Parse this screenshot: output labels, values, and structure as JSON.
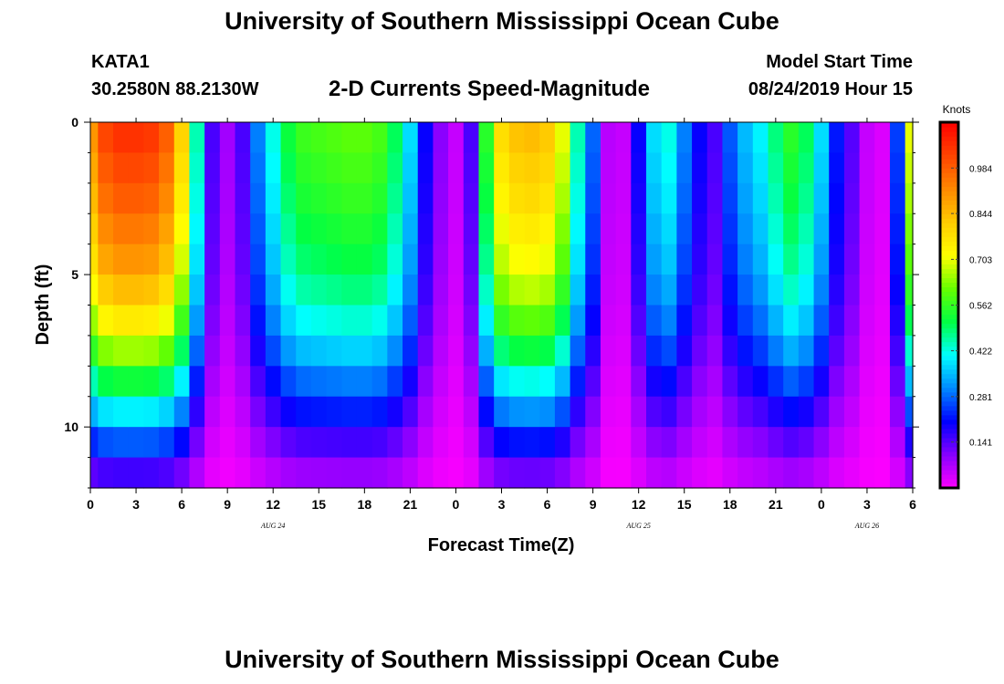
{
  "header": {
    "title": "University of Southern Mississippi Ocean Cube",
    "station": "KATA1",
    "coords": "30.2580N 88.2130W",
    "subtitle": "2-D Currents Speed-Magnitude",
    "model_start_label": "Model Start Time",
    "model_start_value": "08/24/2019 Hour 15"
  },
  "footer": {
    "title": "University of Southern Mississippi Ocean Cube"
  },
  "chart_data": {
    "type": "heatmap",
    "title": "2-D Currents Speed-Magnitude",
    "xlabel": "Forecast Time(Z)",
    "ylabel": "Depth (ft)",
    "colorbar_label": "Knots",
    "x_hours_from_start": {
      "start_label": "08/24/2019 00Z",
      "range": [
        0,
        54
      ],
      "step_hours": 1
    },
    "x_tick_hours": [
      0,
      3,
      6,
      9,
      12,
      15,
      18,
      21,
      24,
      27,
      30,
      33,
      36,
      39,
      42,
      45,
      48,
      51,
      54
    ],
    "x_tick_labels": [
      "0",
      "3",
      "6",
      "9",
      "12",
      "15",
      "18",
      "21",
      "0",
      "3",
      "6",
      "9",
      "12",
      "15",
      "18",
      "21",
      "0",
      "3",
      "6"
    ],
    "date_labels": [
      {
        "hour": 12,
        "text": "AUG 24"
      },
      {
        "hour": 36,
        "text": "AUG 25"
      },
      {
        "hour": 51,
        "text": "AUG 26"
      }
    ],
    "y_range_ft": [
      0,
      12
    ],
    "y_ticks": [
      0,
      5,
      10
    ],
    "depth_levels_ft": [
      0.5,
      1.5,
      2.5,
      3.5,
      4.5,
      5.5,
      6.5,
      7.5,
      8.5,
      9.5,
      10.5,
      11.5
    ],
    "surface_speed_knots_by_hour": [
      0.9,
      1.02,
      1.05,
      1.05,
      1.04,
      0.98,
      0.8,
      0.45,
      0.15,
      0.08,
      0.15,
      0.3,
      0.42,
      0.52,
      0.57,
      0.58,
      0.59,
      0.6,
      0.6,
      0.58,
      0.5,
      0.38,
      0.2,
      0.1,
      0.05,
      0.15,
      0.55,
      0.78,
      0.83,
      0.84,
      0.82,
      0.7,
      0.45,
      0.28,
      0.06,
      0.05,
      0.2,
      0.38,
      0.42,
      0.3,
      0.2,
      0.15,
      0.27,
      0.35,
      0.4,
      0.48,
      0.55,
      0.5,
      0.38,
      0.22,
      0.14,
      0.05,
      0.03,
      0.25,
      0.7
    ],
    "depth_decay": [
      1.0,
      0.97,
      0.94,
      0.9,
      0.86,
      0.8,
      0.72,
      0.62,
      0.5,
      0.38,
      0.26,
      0.15
    ],
    "color_scale": {
      "min": 0,
      "max": 1.125,
      "tick_values": [
        0.141,
        0.281,
        0.422,
        0.562,
        0.703,
        0.844,
        0.984
      ],
      "tick_labels": [
        "0.141",
        "0.281",
        "0.422",
        "0.562",
        "0.703",
        "0.844",
        "0.984"
      ],
      "colors": [
        "#ff00ff",
        "#8800ff",
        "#0000ff",
        "#0088ff",
        "#00ffff",
        "#00ff44",
        "#66ff00",
        "#ffff00",
        "#ffcc00",
        "#ff8800",
        "#ff4400",
        "#ff0000"
      ]
    }
  }
}
